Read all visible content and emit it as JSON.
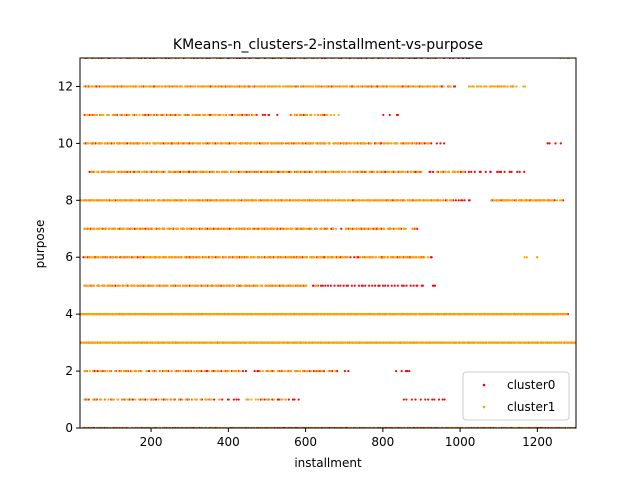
{
  "chart_data": {
    "type": "scatter",
    "title": "KMeans-n_clusters-2-installment-vs-purpose",
    "xlabel": "installment",
    "ylabel": "purpose",
    "xlim": [
      16,
      1300
    ],
    "ylim": [
      0,
      13
    ],
    "x_ticks": [
      200,
      400,
      600,
      800,
      1000,
      1200
    ],
    "y_ticks": [
      0,
      2,
      4,
      6,
      8,
      10,
      12
    ],
    "grid": false,
    "legend_position": "lower-right",
    "series": [
      {
        "name": "cluster0",
        "color": "#ff0000",
        "bands": [
          {
            "y": 0,
            "ranges": [
              [
                20,
                1300
              ]
            ],
            "density": 0.5
          },
          {
            "y": 1,
            "ranges": [
              [
                25,
                420
              ],
              [
                480,
                560
              ],
              [
                850,
                940
              ]
            ],
            "density": 0.25
          },
          {
            "y": 2,
            "ranges": [
              [
                25,
                450
              ],
              [
                500,
                680
              ],
              [
                830,
                860
              ]
            ],
            "density": 0.3
          },
          {
            "y": 3,
            "ranges": [
              [
                18,
                1300
              ]
            ],
            "density": 0.6
          },
          {
            "y": 4,
            "ranges": [
              [
                18,
                1270
              ]
            ],
            "density": 0.6
          },
          {
            "y": 5,
            "ranges": [
              [
                25,
                600
              ],
              [
                620,
                910
              ]
            ],
            "density": 0.35
          },
          {
            "y": 6,
            "ranges": [
              [
                25,
                780
              ],
              [
                790,
                900
              ]
            ],
            "density": 0.35
          },
          {
            "y": 7,
            "ranges": [
              [
                25,
                670
              ],
              [
                700,
                860
              ]
            ],
            "density": 0.3
          },
          {
            "y": 8,
            "ranges": [
              [
                18,
                1010
              ],
              [
                1080,
                1240
              ]
            ],
            "density": 0.45
          },
          {
            "y": 9,
            "ranges": [
              [
                40,
                900
              ],
              [
                940,
                1140
              ]
            ],
            "density": 0.3
          },
          {
            "y": 10,
            "ranges": [
              [
                25,
                810
              ],
              [
                850,
                930
              ],
              [
                1225,
                1230
              ]
            ],
            "density": 0.35
          },
          {
            "y": 11,
            "ranges": [
              [
                25,
                500
              ],
              [
                560,
                620
              ],
              [
                800,
                810
              ]
            ],
            "density": 0.25
          },
          {
            "y": 12,
            "ranges": [
              [
                25,
                960
              ],
              [
                1080,
                1120
              ]
            ],
            "density": 0.4
          },
          {
            "y": 13,
            "ranges": [
              [
                25,
                1000
              ]
            ],
            "density": 0.2
          }
        ]
      },
      {
        "name": "cluster1",
        "color": "#ffa500",
        "bands": [
          {
            "y": 0,
            "ranges": [
              [
                20,
                1300
              ]
            ],
            "density": 0.4
          },
          {
            "y": 1,
            "ranges": [
              [
                25,
                350
              ],
              [
                440,
                520
              ]
            ],
            "density": 0.3
          },
          {
            "y": 2,
            "ranges": [
              [
                25,
                420
              ],
              [
                480,
                650
              ]
            ],
            "density": 0.35
          },
          {
            "y": 3,
            "ranges": [
              [
                18,
                1300
              ]
            ],
            "density": 0.9
          },
          {
            "y": 4,
            "ranges": [
              [
                18,
                1270
              ]
            ],
            "density": 0.9
          },
          {
            "y": 5,
            "ranges": [
              [
                25,
                600
              ]
            ],
            "density": 0.5
          },
          {
            "y": 6,
            "ranges": [
              [
                25,
                700
              ],
              [
                740,
                900
              ],
              [
                1165,
                1170
              ]
            ],
            "density": 0.5
          },
          {
            "y": 7,
            "ranges": [
              [
                25,
                650
              ],
              [
                700,
                860
              ]
            ],
            "density": 0.45
          },
          {
            "y": 8,
            "ranges": [
              [
                18,
                960
              ],
              [
                1080,
                1245
              ]
            ],
            "density": 0.6
          },
          {
            "y": 9,
            "ranges": [
              [
                40,
                880
              ],
              [
                940,
                1000
              ]
            ],
            "density": 0.45
          },
          {
            "y": 10,
            "ranges": [
              [
                25,
                760
              ],
              [
                780,
                900
              ]
            ],
            "density": 0.5
          },
          {
            "y": 11,
            "ranges": [
              [
                25,
                450
              ],
              [
                560,
                660
              ]
            ],
            "density": 0.4
          },
          {
            "y": 12,
            "ranges": [
              [
                25,
                950
              ],
              [
                1020,
                1140
              ]
            ],
            "density": 0.55
          },
          {
            "y": 13,
            "ranges": [
              [
                25,
                900
              ],
              [
                1250,
                1260
              ]
            ],
            "density": 0.2
          }
        ]
      }
    ]
  }
}
